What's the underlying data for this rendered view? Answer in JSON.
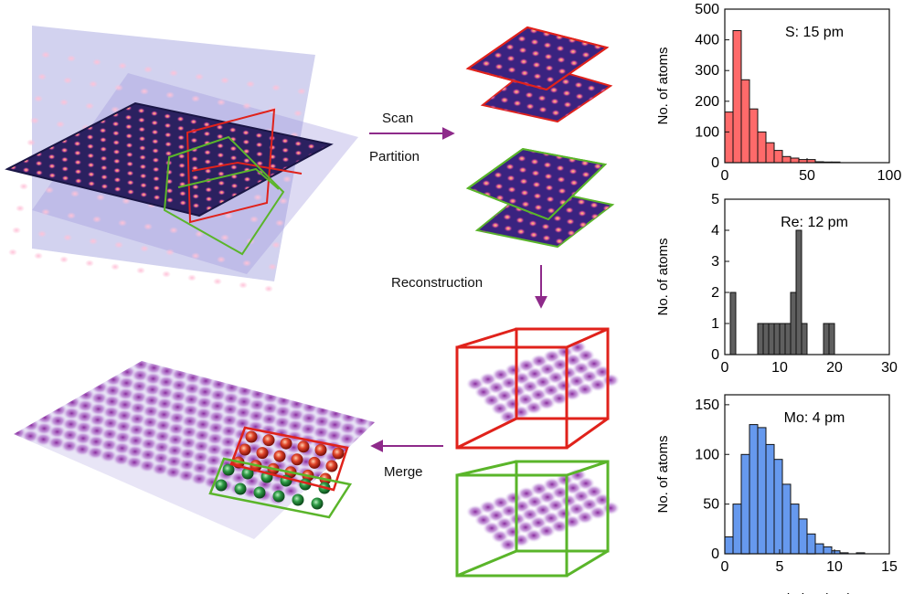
{
  "colors": {
    "arrow": "#8e2a8a",
    "red_box": "#e0221b",
    "green_box": "#5ab52a",
    "slab_dark": "#2b2160",
    "plane_tint": "#8f8fd6",
    "hist_s": "#ff6a6a",
    "hist_re": "#5f5f5f",
    "hist_mo": "#6699ee"
  },
  "labels": {
    "scan": "Scan",
    "partition": "Partition",
    "reconstruction": "Reconstruction",
    "merge": "Merge"
  },
  "chart_data": [
    {
      "type": "bar",
      "annotation": "S: 15 pm",
      "ylabel": "No. of atoms",
      "xlim": [
        0,
        100
      ],
      "ylim": [
        0,
        500
      ],
      "xticks": [
        0,
        50,
        100
      ],
      "yticks": [
        0,
        100,
        200,
        300,
        400,
        500
      ],
      "bin_width": 5,
      "bin_starts": [
        0,
        5,
        10,
        15,
        20,
        25,
        30,
        35,
        40,
        45,
        50,
        55,
        60,
        65
      ],
      "values": [
        165,
        430,
        270,
        175,
        100,
        65,
        40,
        20,
        15,
        10,
        10,
        3,
        2,
        2
      ]
    },
    {
      "type": "bar",
      "annotation": "Re: 12 pm",
      "ylabel": "No. of atoms",
      "xlim": [
        0,
        30
      ],
      "ylim": [
        0,
        5
      ],
      "xticks": [
        0,
        10,
        20,
        30
      ],
      "yticks": [
        0,
        1,
        2,
        3,
        4,
        5
      ],
      "bin_width": 1,
      "bin_starts": [
        1,
        2,
        3,
        4,
        5,
        6,
        7,
        8,
        9,
        10,
        11,
        12,
        13,
        14,
        15,
        16,
        17,
        18,
        19,
        20
      ],
      "values": [
        2,
        0,
        0,
        0,
        0,
        1,
        1,
        1,
        1,
        1,
        1,
        2,
        4,
        1,
        0,
        0,
        0,
        1,
        1,
        0
      ]
    },
    {
      "type": "bar",
      "annotation": "Mo: 4 pm",
      "ylabel": "No. of atoms",
      "xlabel": "Deviation (pm)",
      "xlim": [
        0,
        15
      ],
      "ylim": [
        0,
        160
      ],
      "xticks": [
        0,
        5,
        10,
        15
      ],
      "yticks": [
        0,
        50,
        100,
        150
      ],
      "bin_width": 0.75,
      "bin_starts": [
        0,
        0.75,
        1.5,
        2.25,
        3.0,
        3.75,
        4.5,
        5.25,
        6.0,
        6.75,
        7.5,
        8.25,
        9.0,
        9.75,
        10.5,
        11.25,
        12.0
      ],
      "values": [
        17,
        50,
        100,
        130,
        127,
        110,
        95,
        70,
        50,
        35,
        20,
        10,
        7,
        3,
        1,
        0,
        1
      ]
    }
  ]
}
